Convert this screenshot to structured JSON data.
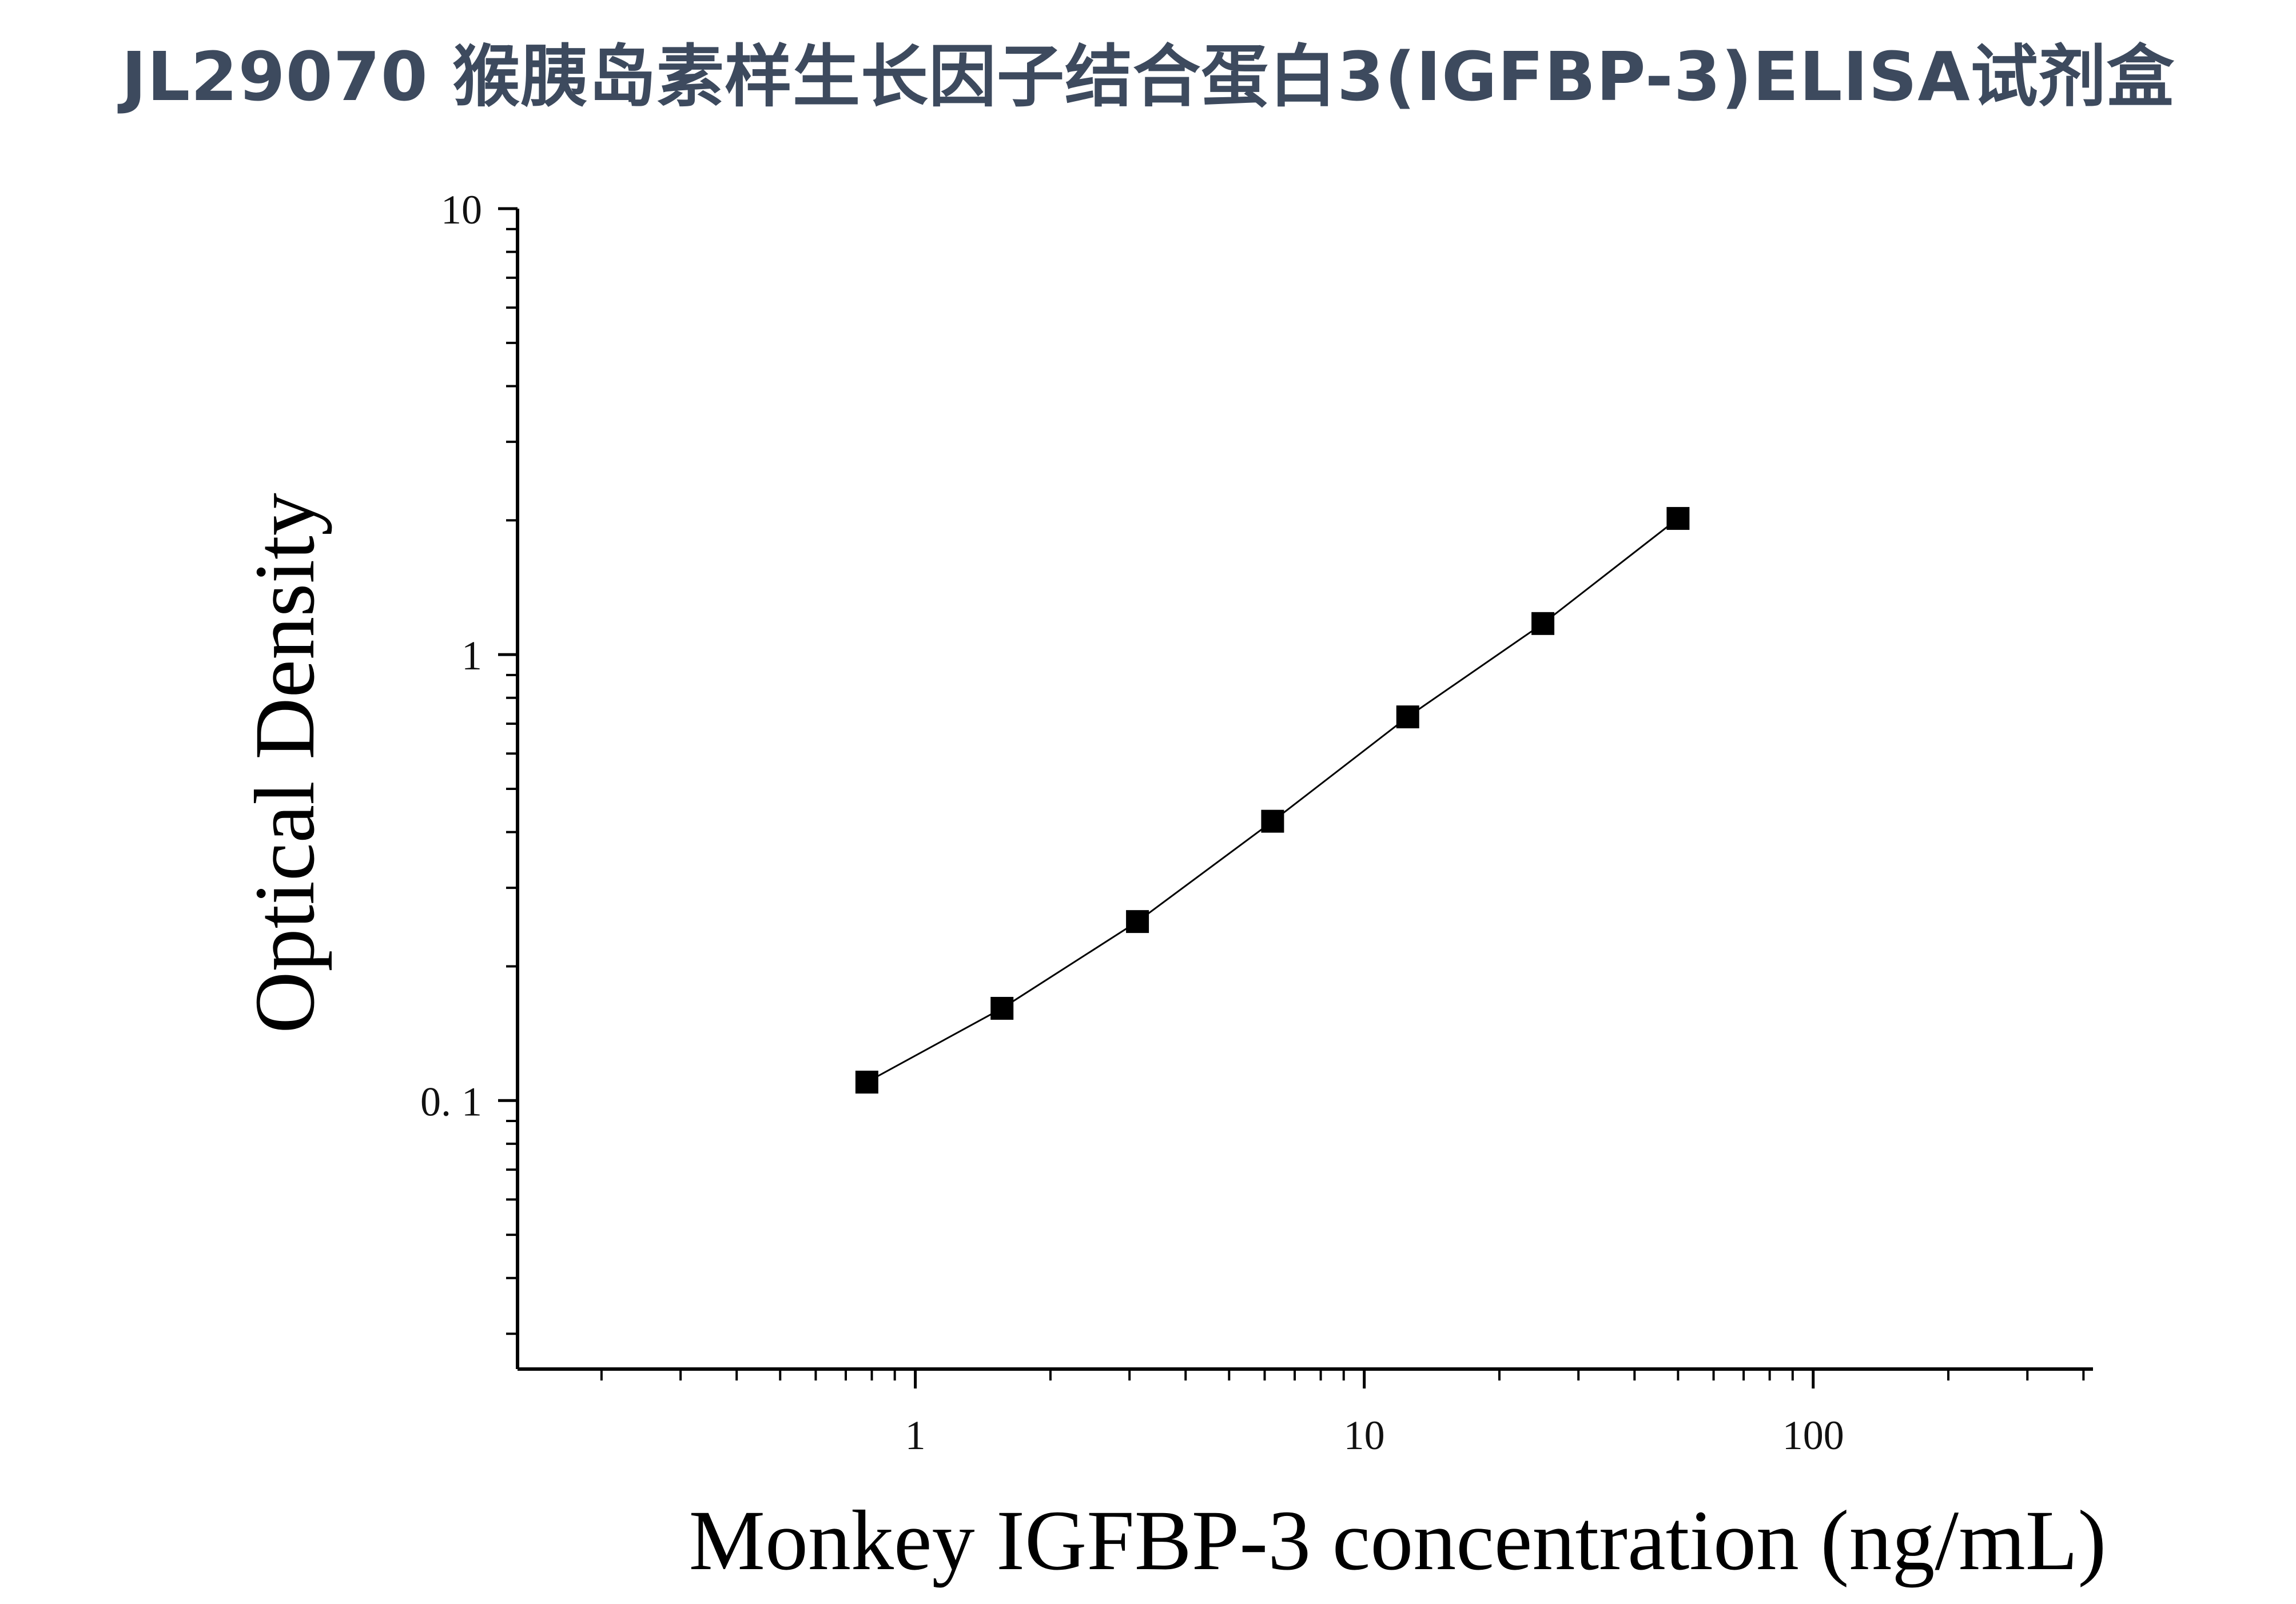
{
  "title": "JL29070 猴胰岛素样生长因子结合蛋白3(IGFBP-3)ELISA试剂盒",
  "chart_data": {
    "type": "scatter",
    "title": "",
    "xlabel": "Monkey IGFBP-3 concentration (ng/mL)",
    "ylabel": "Optical Density",
    "x_scale": "log",
    "y_scale": "log",
    "xlim": [
      0.13,
      420
    ],
    "ylim": [
      0.025,
      10
    ],
    "x_ticks": [
      {
        "value": 1,
        "label": "1"
      },
      {
        "value": 10,
        "label": "10"
      },
      {
        "value": 100,
        "label": "100"
      }
    ],
    "y_ticks": [
      {
        "value": 0.1,
        "label": "0. 1"
      },
      {
        "value": 1,
        "label": "1"
      },
      {
        "value": 10,
        "label": "10"
      }
    ],
    "grid": false,
    "legend": "none",
    "marker": "square",
    "line": "connected",
    "color": "#000000",
    "series": [
      {
        "x": [
          0.78,
          1.56,
          3.125,
          6.25,
          12.5,
          25,
          50
        ],
        "y": [
          0.11,
          0.161,
          0.252,
          0.423,
          0.725,
          1.174,
          2.02
        ]
      }
    ]
  }
}
